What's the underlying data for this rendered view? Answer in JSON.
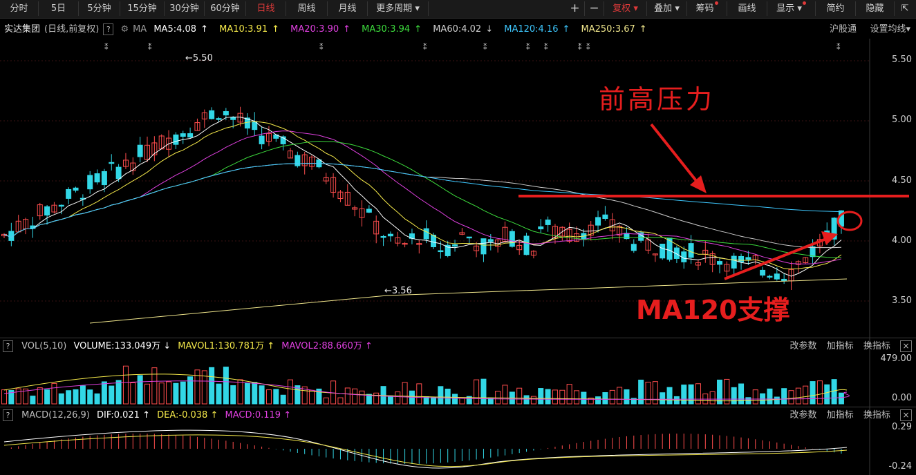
{
  "toolbar": {
    "left": [
      "分时",
      "5日",
      "5分钟",
      "15分钟",
      "30分钟",
      "60分钟",
      "日线",
      "周线",
      "月线",
      "更多周期"
    ],
    "active": "日线",
    "right": {
      "plus": "+",
      "minus": "−",
      "fq": "复权",
      "overlay": "叠加",
      "chip": "筹码",
      "draw": "画线",
      "display": "显示",
      "simple": "简约",
      "hide": "隐藏"
    }
  },
  "info": {
    "stock": "实达集团",
    "mode": "(日线,前复权)",
    "help": "?",
    "ma_label": "MA",
    "ma": [
      {
        "text": "MA5:4.08",
        "arrow": "↑",
        "color": "#ffffff"
      },
      {
        "text": "MA10:3.91",
        "arrow": "↑",
        "color": "#f5e94a"
      },
      {
        "text": "MA20:3.90",
        "arrow": "↑",
        "color": "#e040e0"
      },
      {
        "text": "MA30:3.94",
        "arrow": "↑",
        "color": "#3ddc3d"
      },
      {
        "text": "MA60:4.02",
        "arrow": "↓",
        "color": "#cfcfcf"
      },
      {
        "text": "MA120:4.16",
        "arrow": "↑",
        "color": "#3ec8ff"
      },
      {
        "text": "MA250:3.67",
        "arrow": "↑",
        "color": "#f0e68c"
      }
    ],
    "right": [
      "沪股通",
      "设置均线"
    ]
  },
  "price_axis": [
    "5.50",
    "5.00",
    "4.50",
    "4.00",
    "3.50"
  ],
  "annotations": {
    "high": "5.50",
    "low": "3.56",
    "resistance": "前高压力",
    "support": "MA120支撑"
  },
  "volume": {
    "help": "?",
    "label": "VOL(5,10)",
    "volume": "VOLUME:133.049万",
    "vol_arrow": "↓",
    "mavol1": "MAVOL1:130.781万",
    "mavol2": "MAVOL2:88.660万",
    "up_arrow": "↑",
    "ops": [
      "改参数",
      "加指标",
      "换指标"
    ],
    "close": "×",
    "axis": [
      "479.00",
      "0.00"
    ]
  },
  "macd": {
    "help": "?",
    "label": "MACD(12,26,9)",
    "dif": "DIF:0.021",
    "dea": "DEA:-0.038",
    "macd": "MACD:0.119",
    "up_arrow": "↑",
    "ops": [
      "改参数",
      "加指标",
      "换指标"
    ],
    "close": "×",
    "axis": [
      "0.29",
      "-0.24"
    ]
  },
  "colors": {
    "up": "#ff4d4d",
    "down": "#32d7e6",
    "accent": "#e61e1e"
  }
}
